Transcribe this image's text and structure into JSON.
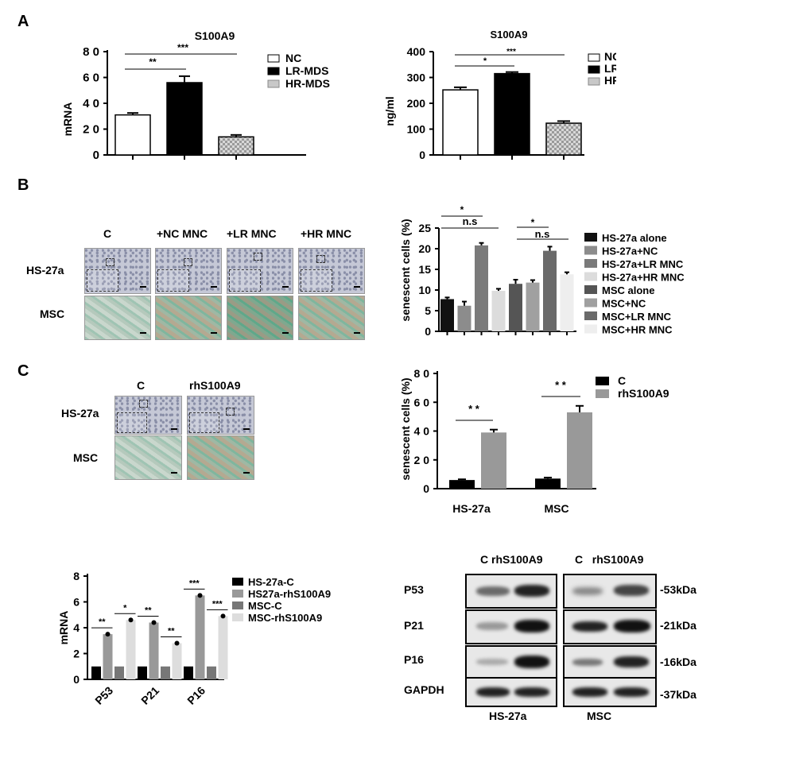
{
  "panels": {
    "A": "A",
    "B": "B",
    "C": "C"
  },
  "chartA1": {
    "type": "bar",
    "title": "S100A9",
    "ylabel": "mRNA",
    "yticks": [
      "8 0",
      "6 0",
      "4 0",
      "2 0",
      "0"
    ],
    "ylim": [
      0,
      80
    ],
    "values": [
      31,
      56,
      14
    ],
    "errors": [
      1.5,
      5,
      1.5
    ],
    "sig": [
      {
        "label": "**"
      },
      {
        "label": "***"
      }
    ],
    "legend": [
      "NC",
      "LR-MDS",
      "HR-MDS"
    ]
  },
  "chartA2": {
    "type": "bar",
    "title": "S100A9",
    "ylabel": "ng/ml",
    "yticks": [
      "400",
      "300",
      "200",
      "100",
      "0"
    ],
    "ylim": [
      0,
      400
    ],
    "values": [
      252,
      315,
      123
    ],
    "errors": [
      10,
      6,
      8
    ],
    "sig": [
      {
        "label": "*"
      },
      {
        "label": "***"
      }
    ],
    "legend": [
      "NC",
      "LR-MDS",
      "HR-MDS"
    ]
  },
  "imagesB": {
    "cols": [
      "C",
      "+NC MNC",
      "+LR MNC",
      "+HR MNC"
    ],
    "rows": [
      "HS-27a",
      "MSC"
    ]
  },
  "chartB": {
    "type": "bar",
    "ylabel": "senescent cells (%)",
    "yticks": [
      "25",
      "20",
      "15",
      "10",
      "5",
      "0"
    ],
    "ylim": [
      0,
      25
    ],
    "values": [
      7.8,
      6.2,
      20.8,
      9.8,
      11.5,
      11.8,
      19.5,
      13.8
    ],
    "errors": [
      0.4,
      1,
      0.6,
      0.5,
      1,
      0.6,
      1,
      0.5
    ],
    "colors": [
      "#111111",
      "#8c8c8c",
      "#7a7a7a",
      "#dcdcdc",
      "#555555",
      "#a0a0a0",
      "#6a6a6a",
      "#eeeeee"
    ],
    "sig": [
      "*",
      "n.s",
      "*",
      "n.s"
    ],
    "legend": [
      "HS-27a alone",
      "HS-27a+NC",
      "HS-27a+LR MNC",
      "HS-27a+HR MNC",
      "MSC alone",
      "MSC+NC",
      "MSC+LR MNC",
      "MSC+HR MNC"
    ]
  },
  "imagesC": {
    "cols": [
      "C",
      "rhS100A9"
    ],
    "rows": [
      "HS-27a",
      "MSC"
    ]
  },
  "chartC": {
    "type": "bar",
    "ylabel": "senescent cells (%)",
    "yticks": [
      "8 0",
      "6 0",
      "4 0",
      "2 0",
      "0"
    ],
    "ylim": [
      0,
      80
    ],
    "categories": [
      "HS-27a",
      "MSC"
    ],
    "series": [
      {
        "name": "C",
        "values": [
          6,
          7
        ]
      },
      {
        "name": "rhS100A9",
        "values": [
          39,
          53
        ]
      }
    ],
    "errors": [
      [
        0.5,
        0.7
      ],
      [
        2,
        4.5
      ]
    ],
    "sig": [
      "* *",
      "* *"
    ]
  },
  "chartD": {
    "type": "bar",
    "ylabel": "mRNA",
    "yticks": [
      "8",
      "6",
      "4",
      "2",
      "0"
    ],
    "ylim": [
      0,
      8
    ],
    "categories": [
      "P53",
      "P21",
      "P16"
    ],
    "series": [
      {
        "name": "HS-27a-C",
        "values": [
          1,
          1,
          1
        ]
      },
      {
        "name": "HS27a-rhS100A9",
        "values": [
          3.5,
          4.4,
          6.5
        ]
      },
      {
        "name": "MSC-C",
        "values": [
          1,
          1,
          1
        ]
      },
      {
        "name": "MSC-rhS100A9",
        "values": [
          4.6,
          2.8,
          4.9
        ]
      }
    ],
    "sig": [
      [
        "**",
        "*"
      ],
      [
        "**",
        "**"
      ],
      [
        "***",
        "***"
      ]
    ]
  },
  "western": {
    "header1": "C rhS100A9",
    "header2": "C   rhS100A9",
    "rows": [
      {
        "label": "P53",
        "kda": "-53kDa"
      },
      {
        "label": "P21",
        "kda": "-21kDa"
      },
      {
        "label": "P16",
        "kda": "-16kDa"
      },
      {
        "label": "GAPDH",
        "kda": "-37kDa"
      }
    ],
    "footer": [
      "HS-27a",
      "MSC"
    ]
  }
}
